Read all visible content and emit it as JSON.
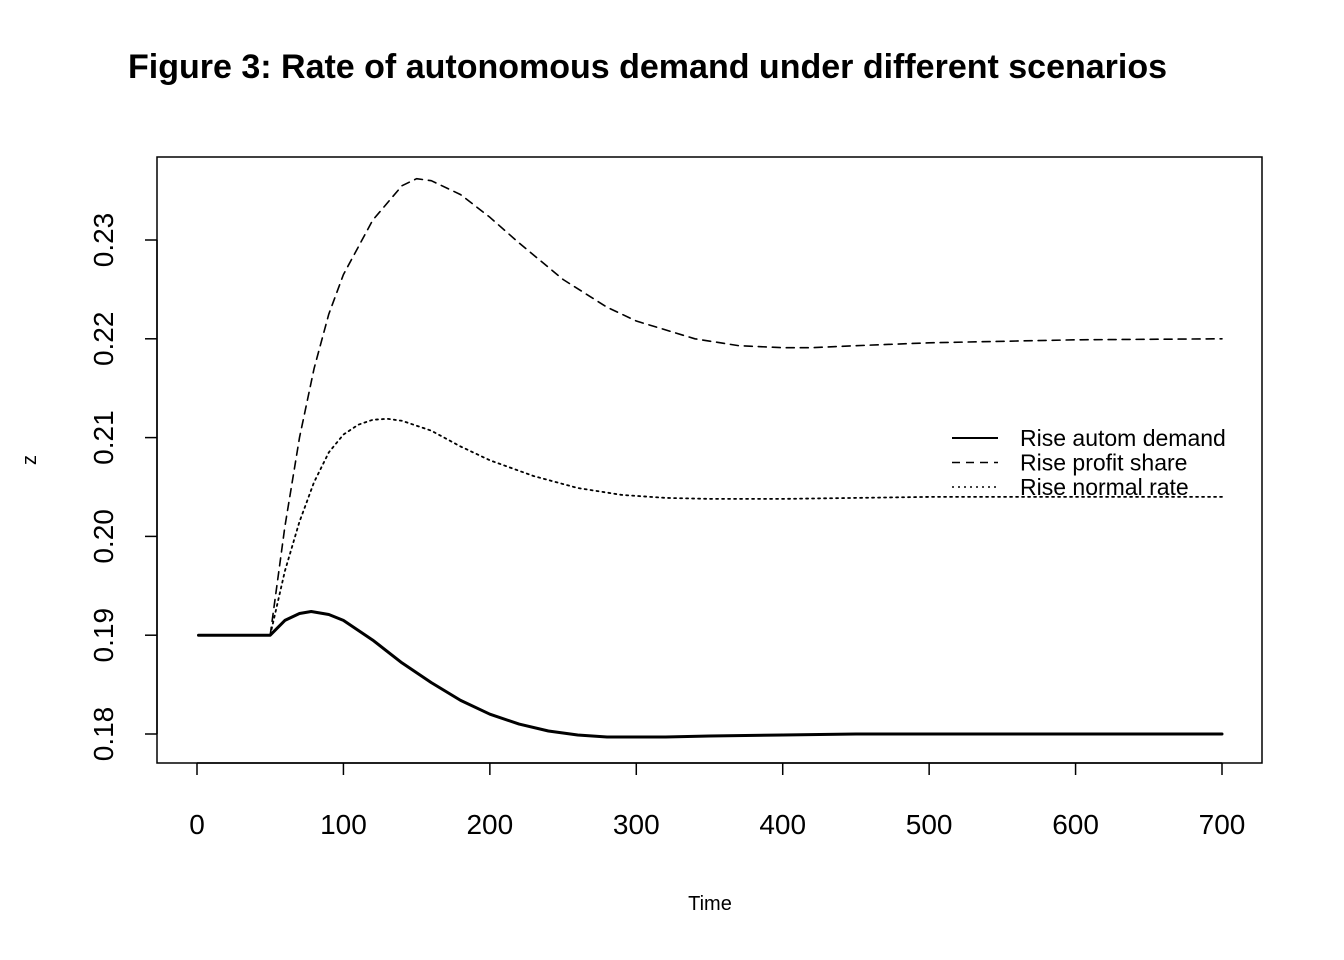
{
  "chart_data": {
    "type": "line",
    "title": "Figure 3: Rate of autonomous demand under different scenarios",
    "xlabel": "Time",
    "ylabel": "z",
    "xlim": [
      0,
      700
    ],
    "ylim": [
      0.177,
      0.237
    ],
    "xticks": [
      0,
      100,
      200,
      300,
      400,
      500,
      600,
      700
    ],
    "xtick_labels": [
      "0",
      "100",
      "200",
      "300",
      "400",
      "500",
      "600",
      "700"
    ],
    "yticks": [
      0.18,
      0.19,
      0.2,
      0.21,
      0.22,
      0.23
    ],
    "ytick_labels": [
      "0.18",
      "0.19",
      "0.20",
      "0.21",
      "0.22",
      "0.23"
    ],
    "grid": false,
    "legend": {
      "placement": "right",
      "entries": [
        "Rise autom demand",
        "Rise profit share",
        "Rise normal rate"
      ]
    },
    "series": [
      {
        "name": "Rise autom demand",
        "style": "solid",
        "x": [
          1,
          50,
          60,
          70,
          78,
          90,
          100,
          120,
          140,
          160,
          180,
          200,
          220,
          240,
          260,
          280,
          300,
          320,
          350,
          400,
          450,
          500,
          600,
          700
        ],
        "y": [
          0.19,
          0.19,
          0.1915,
          0.1922,
          0.1924,
          0.1921,
          0.1915,
          0.1895,
          0.1872,
          0.1852,
          0.1834,
          0.182,
          0.181,
          0.1803,
          0.1799,
          0.1797,
          0.1797,
          0.1797,
          0.1798,
          0.1799,
          0.18,
          0.18,
          0.18,
          0.18
        ]
      },
      {
        "name": "Rise profit share",
        "style": "dashed",
        "x": [
          50,
          60,
          70,
          80,
          90,
          100,
          120,
          140,
          150,
          160,
          180,
          200,
          220,
          250,
          280,
          300,
          340,
          370,
          400,
          420,
          450,
          500,
          600,
          700
        ],
        "y": [
          0.19,
          0.201,
          0.21,
          0.217,
          0.2225,
          0.2265,
          0.232,
          0.2355,
          0.2362,
          0.236,
          0.2346,
          0.2323,
          0.2297,
          0.226,
          0.2232,
          0.2218,
          0.22,
          0.2193,
          0.2191,
          0.2191,
          0.2193,
          0.2196,
          0.2199,
          0.22
        ]
      },
      {
        "name": "Rise normal rate",
        "style": "dotted",
        "x": [
          50,
          60,
          70,
          80,
          90,
          100,
          110,
          120,
          130,
          140,
          160,
          180,
          200,
          230,
          260,
          290,
          320,
          350,
          400,
          450,
          500,
          600,
          700
        ],
        "y": [
          0.19,
          0.1965,
          0.2015,
          0.2055,
          0.2085,
          0.2103,
          0.2113,
          0.2118,
          0.2119,
          0.2117,
          0.2107,
          0.2091,
          0.2077,
          0.2061,
          0.2049,
          0.2042,
          0.2039,
          0.2038,
          0.2038,
          0.2039,
          0.204,
          0.204,
          0.204
        ]
      }
    ]
  }
}
